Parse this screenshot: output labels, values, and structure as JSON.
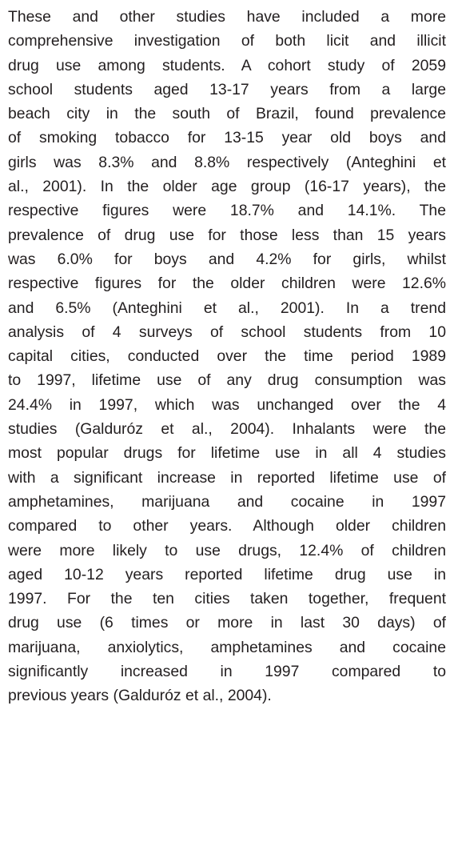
{
  "document": {
    "lines": [
      "These and other studies have included a more",
      "comprehensive investigation of both licit and illicit",
      "drug use among students. A cohort study of 2059",
      "school students aged 13-17 years from a large",
      "beach city in the south of Brazil, found prevalence",
      "of smoking tobacco for 13-15 year old boys and",
      "girls was 8.3% and 8.8% respectively (Anteghini et",
      "al., 2001). In the older age group (16-17 years), the",
      "respective figures were 18.7% and 14.1%. The",
      "prevalence of drug use for those less than 15 years",
      "was 6.0% for boys and 4.2% for girls, whilst",
      "respective figures for the older children were 12.6%",
      "and 6.5% (Anteghini et al., 2001). In a trend",
      "analysis of 4 surveys of school students from 10",
      "capital cities, conducted over the time period 1989",
      "to 1997, lifetime use of any drug consumption was",
      "24.4% in 1997, which was unchanged over the 4",
      "studies (Galduróz et al., 2004). Inhalants were the",
      "most popular drugs for lifetime use in all 4 studies",
      "with a significant increase in reported lifetime use of",
      "amphetamines, marijuana and cocaine in 1997",
      "compared to other years. Although older children",
      "were more likely to use drugs, 12.4% of children",
      "aged 10-12 years reported lifetime drug use in",
      "1997. For the ten cities taken together, frequent",
      "drug use (6 times or more in last 30 days) of",
      "marijuana, anxiolytics, amphetamines and cocaine",
      "significantly increased in 1997 compared to",
      "previous years (Galduróz et al., 2004)."
    ]
  }
}
